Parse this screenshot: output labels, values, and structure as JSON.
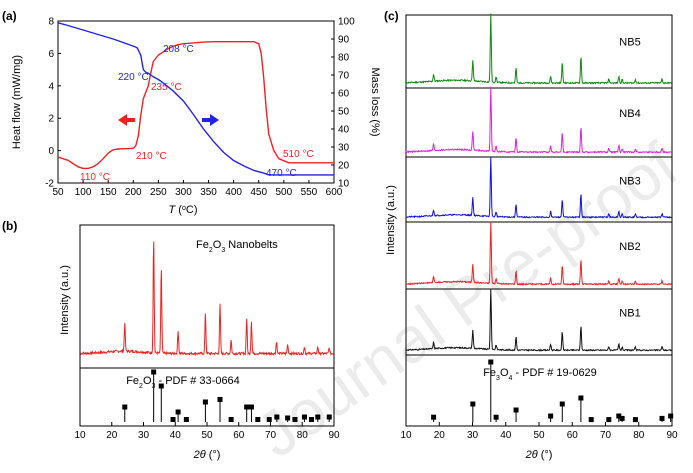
{
  "watermark": "Journal Pre-proof",
  "chart_data": [
    {
      "panel": "(a)",
      "type": "line",
      "xlabel_parts": [
        "T",
        " (",
        "o",
        "C)"
      ],
      "ylabel_left": "Heat flow (mW/mg)",
      "ylabel_right": "Mass loss (%)",
      "xlim": [
        50,
        600
      ],
      "ylim_left": [
        -2,
        8
      ],
      "ylim_right": [
        10,
        100
      ],
      "xticks": [
        "50",
        "100",
        "150",
        "200",
        "250",
        "300",
        "350",
        "400",
        "450",
        "500",
        "550",
        "600"
      ],
      "yticks_left": [
        "-2",
        "0",
        "2",
        "4",
        "6",
        "8"
      ],
      "yticks_right": [
        "10",
        "20",
        "30",
        "40",
        "50",
        "60",
        "70",
        "80",
        "90",
        "100"
      ],
      "colors": {
        "heat": "#ee2222",
        "mass": "#2222ee"
      },
      "series": [
        {
          "axis": "left",
          "x": [
            50,
            60,
            70,
            80,
            90,
            100,
            110,
            120,
            130,
            140,
            150,
            160,
            170,
            180,
            190,
            200,
            205,
            210,
            215,
            220,
            225,
            230,
            235,
            240,
            250,
            260,
            270,
            280,
            290,
            300,
            320,
            340,
            360,
            380,
            400,
            420,
            440,
            450,
            455,
            460,
            465,
            470,
            480,
            490,
            510,
            530,
            560,
            600
          ],
          "values": [
            -0.4,
            -0.5,
            -0.6,
            -0.8,
            -1.0,
            -1.1,
            -1.1,
            -1.0,
            -0.8,
            -0.5,
            -0.15,
            0.05,
            0.1,
            0.12,
            0.12,
            0.15,
            0.3,
            0.9,
            2.2,
            3.2,
            3.6,
            4.0,
            4.8,
            5.5,
            5.9,
            6.1,
            6.3,
            6.45,
            6.55,
            6.6,
            6.65,
            6.7,
            6.72,
            6.72,
            6.72,
            6.72,
            6.72,
            6.6,
            6.0,
            4.5,
            2.5,
            1.0,
            0.0,
            -0.5,
            -0.75,
            -0.75,
            -0.75,
            -0.75
          ]
        },
        {
          "axis": "right",
          "x": [
            50,
            70,
            100,
            130,
            160,
            190,
            205,
            208,
            215,
            220,
            225,
            230,
            240,
            250,
            260,
            280,
            300,
            320,
            340,
            360,
            380,
            400,
            420,
            440,
            460,
            470,
            490,
            520,
            560,
            600
          ],
          "values": [
            99,
            97.5,
            95,
            92.5,
            90,
            87,
            85.5,
            85,
            81,
            73,
            71.5,
            71,
            69,
            67.5,
            65.5,
            61,
            55.5,
            48,
            40,
            33,
            27,
            22.5,
            19.5,
            17,
            15.5,
            14.5,
            14.5,
            14.5,
            14.5,
            14.5
          ]
        }
      ],
      "annotations": [
        "208 °C",
        "220 °C",
        "235 °C",
        "110 °C",
        "210 °C",
        "510 °C",
        "470 °C"
      ]
    },
    {
      "panel": "(b)",
      "type": "line",
      "xlabel_parts": [
        "2",
        "θ",
        " (°)"
      ],
      "ylabel": "Intensity (a.u.)",
      "xlim": [
        10,
        90
      ],
      "xticks": [
        "10",
        "20",
        "30",
        "40",
        "50",
        "60",
        "70",
        "80",
        "90"
      ],
      "legend_parts": [
        "Fe",
        "2",
        "O",
        "3",
        " Nanobelts"
      ],
      "reference_parts": [
        "Fe",
        "2",
        "O",
        "3",
        " - PDF # 33-0664"
      ],
      "color": "#ee2222",
      "peaks_x": [
        24.1,
        33.2,
        35.6,
        40.9,
        49.5,
        54.1,
        57.6,
        62.5,
        64.0,
        71.9,
        75.4,
        80.7,
        84.9,
        88.5
      ],
      "peaks_h": [
        0.25,
        1.0,
        0.75,
        0.2,
        0.35,
        0.42,
        0.12,
        0.3,
        0.28,
        0.1,
        0.08,
        0.06,
        0.06,
        0.05
      ],
      "ref_x": [
        24.1,
        33.2,
        35.6,
        39.3,
        40.9,
        43.5,
        49.5,
        54.1,
        57.6,
        62.5,
        64.0,
        66.0,
        69.6,
        72.0,
        75.4,
        77.7,
        80.7,
        82.9,
        84.9,
        88.5
      ],
      "ref_h": [
        0.3,
        1.0,
        0.72,
        0.05,
        0.2,
        0.05,
        0.4,
        0.45,
        0.05,
        0.3,
        0.3,
        0.05,
        0.05,
        0.1,
        0.08,
        0.05,
        0.1,
        0.05,
        0.1,
        0.1
      ]
    },
    {
      "panel": "(c)",
      "type": "line",
      "xlabel_parts": [
        "2",
        "θ",
        " (°)"
      ],
      "ylabel": "Intensity (a.u.)",
      "xlim": [
        10,
        90
      ],
      "xticks": [
        "10",
        "20",
        "30",
        "40",
        "50",
        "60",
        "70",
        "80",
        "90"
      ],
      "series": [
        {
          "name": "NB5",
          "color": "#118811"
        },
        {
          "name": "NB4",
          "color": "#dd22dd"
        },
        {
          "name": "NB3",
          "color": "#1111dd"
        },
        {
          "name": "NB2",
          "color": "#ee2222"
        },
        {
          "name": "NB1",
          "color": "#111111"
        }
      ],
      "peaks_x": [
        18.3,
        30.1,
        35.5,
        37.1,
        43.1,
        53.5,
        57.0,
        62.6,
        71.0,
        74.0,
        75.0,
        79.0,
        87.0
      ],
      "peaks_h": [
        0.1,
        0.3,
        1.0,
        0.08,
        0.22,
        0.1,
        0.3,
        0.4,
        0.06,
        0.1,
        0.05,
        0.05,
        0.06
      ],
      "reference_parts": [
        "Fe",
        "3",
        "O",
        "4",
        " - PDF # 19-0629"
      ],
      "ref_x": [
        18.3,
        30.1,
        35.5,
        37.1,
        43.1,
        53.5,
        57.0,
        62.6,
        65.7,
        71.0,
        74.0,
        75.0,
        79.0,
        87.0,
        89.6
      ],
      "ref_h": [
        0.08,
        0.3,
        1.0,
        0.08,
        0.2,
        0.1,
        0.3,
        0.4,
        0.04,
        0.04,
        0.1,
        0.06,
        0.04,
        0.06,
        0.1
      ]
    }
  ]
}
